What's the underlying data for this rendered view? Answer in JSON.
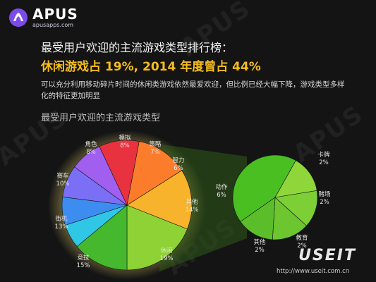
{
  "brand": {
    "name": "APUS",
    "url": "apusapps.com"
  },
  "heading": "最受用户欢迎的主流游戏类型排行榜：",
  "highlight": "休闲游戏占 19%, 2014 年度曾占 44%",
  "note": "可以充分利用移动碎片时间的休闲类游戏依然最爱欢迎，但比例已经大幅下降，游戏类型多样化的特征更加明显",
  "subtitle": "最受用户欢迎的主流游戏类型",
  "watermark": "APUS",
  "footer": {
    "logo": "USEIT",
    "url": "http://www.useit.com.cn"
  },
  "colors": {
    "background": "#141415",
    "accent": "#f6bd1a",
    "connector": "#2f5a18"
  },
  "chart_data": [
    {
      "type": "pie",
      "categories": [
        "休闲",
        "竞技",
        "街机",
        "赛车",
        "角色",
        "模拟",
        "策略",
        "智力",
        "其他"
      ],
      "values": [
        19,
        15,
        13,
        10,
        8,
        8,
        7,
        6,
        14
      ],
      "labels": [
        "19%",
        "15%",
        "13%",
        "10%",
        "8%",
        "8%",
        "7%",
        "6%",
        "14%"
      ],
      "colors": [
        "#8fd235",
        "#f7b32b",
        "#fb7d2b",
        "#e8323f",
        "#a15ff0",
        "#7b6ff5",
        "#3d8df0",
        "#30c7e6",
        "#45b82e"
      ]
    },
    {
      "type": "pie",
      "categories": [
        "动作",
        "卡牌",
        "赌场",
        "教育",
        "其他"
      ],
      "values": [
        6,
        2,
        2,
        2,
        2
      ],
      "labels": [
        "6%",
        "2%",
        "2%",
        "2%",
        "2%"
      ],
      "colors": [
        "#49bf22",
        "#8fd63a",
        "#7ccf35",
        "#6dc62f",
        "#5cbd2a"
      ]
    }
  ]
}
